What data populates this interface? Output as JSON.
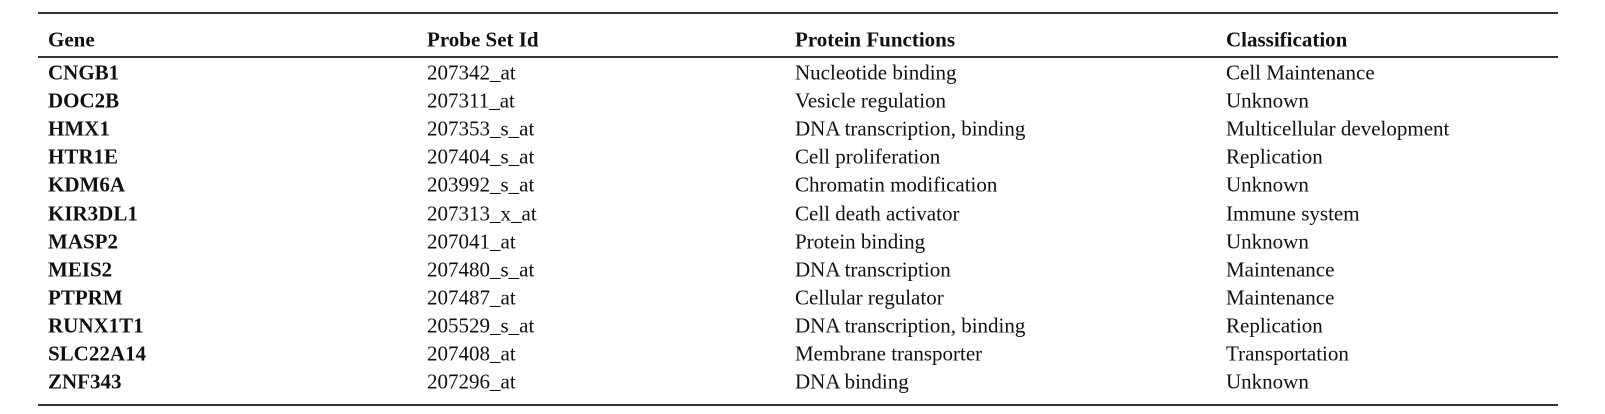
{
  "table": {
    "headers": [
      "Gene",
      "Probe Set Id",
      "Protein Functions",
      "Classification"
    ],
    "rows": [
      [
        "CNGB1",
        "207342_at",
        "Nucleotide binding",
        "Cell Maintenance"
      ],
      [
        "DOC2B",
        "207311_at",
        "Vesicle regulation",
        "Unknown"
      ],
      [
        "HMX1",
        "207353_s_at",
        "DNA transcription, binding",
        "Multicellular development"
      ],
      [
        "HTR1E",
        "207404_s_at",
        "Cell proliferation",
        "Replication"
      ],
      [
        "KDM6A",
        "203992_s_at",
        "Chromatin modification",
        "Unknown"
      ],
      [
        "KIR3DL1",
        "207313_x_at",
        "Cell death activator",
        "Immune system"
      ],
      [
        "MASP2",
        "207041_at",
        "Protein binding",
        "Unknown"
      ],
      [
        "MEIS2",
        "207480_s_at",
        "DNA transcription",
        "Maintenance"
      ],
      [
        "PTPRM",
        "207487_at",
        "Cellular regulator",
        "Maintenance"
      ],
      [
        "RUNX1T1",
        "205529_s_at",
        "DNA transcription, binding",
        "Replication"
      ],
      [
        "SLC22A14",
        "207408_at",
        "Membrane transporter",
        "Transportation"
      ],
      [
        "ZNF343",
        "207296_at",
        "DNA binding",
        "Unknown"
      ]
    ]
  }
}
